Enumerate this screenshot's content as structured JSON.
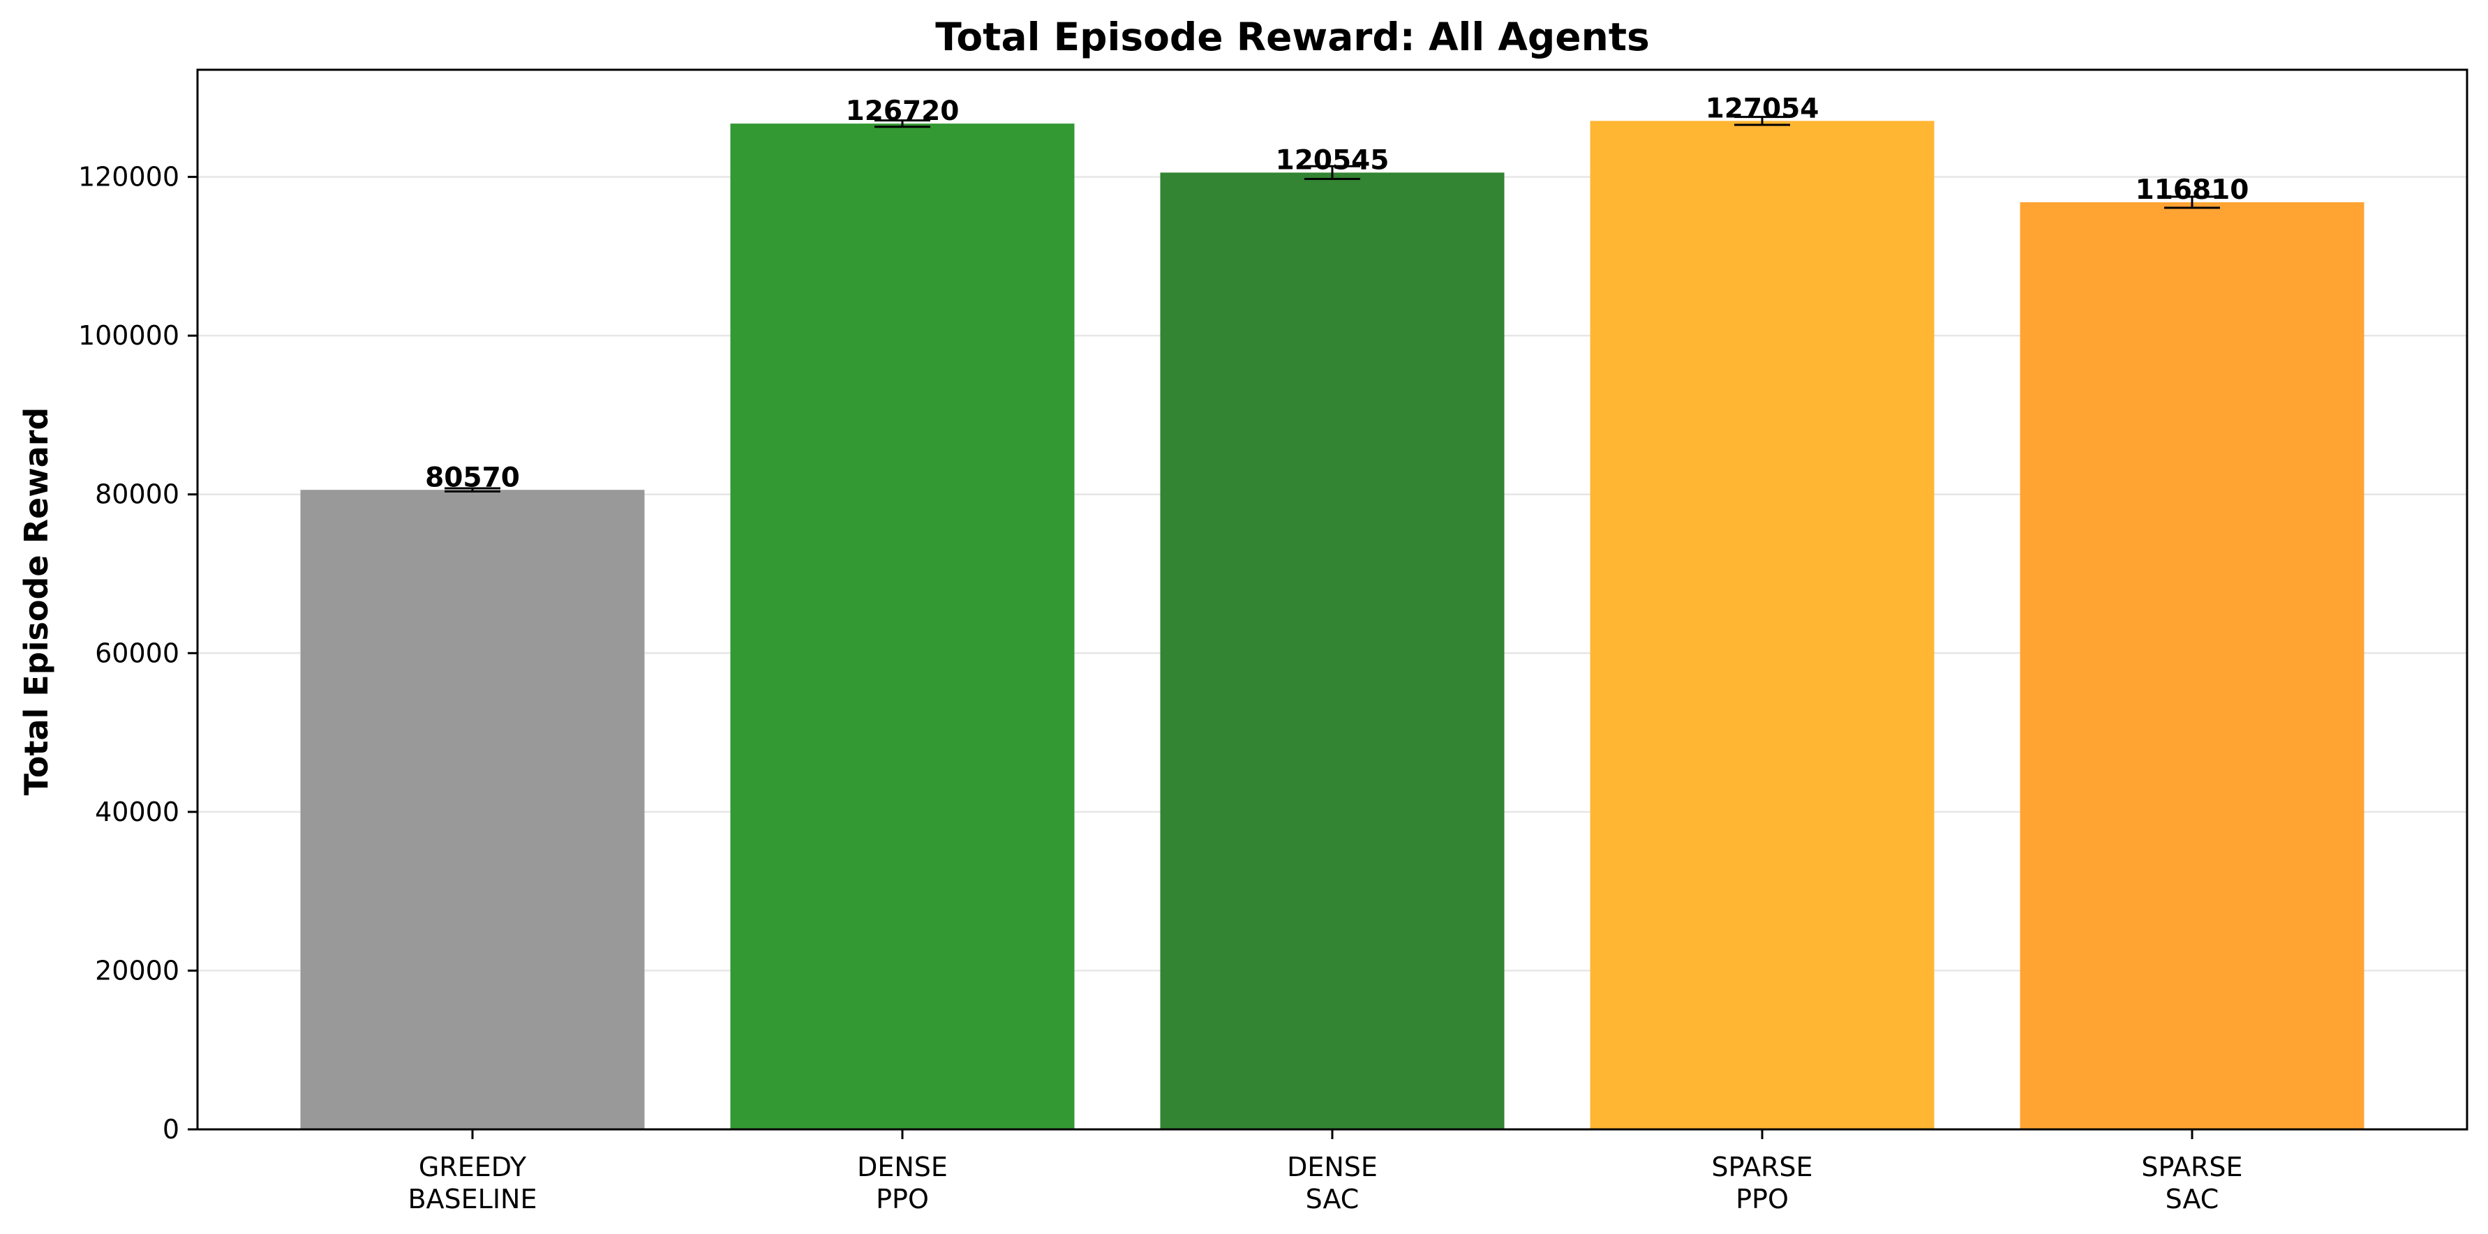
{
  "chart_data": {
    "type": "bar",
    "title": "Total Episode Reward: All Agents",
    "xlabel": "",
    "ylabel": "Total Episode Reward",
    "ylim": [
      0,
      133500
    ],
    "yticks": [
      0,
      20000,
      40000,
      60000,
      80000,
      100000,
      120000
    ],
    "grid": true,
    "categories": [
      [
        "GREEDY",
        "BASELINE"
      ],
      [
        "DENSE",
        "PPO"
      ],
      [
        "DENSE",
        "SAC"
      ],
      [
        "SPARSE",
        "PPO"
      ],
      [
        "SPARSE",
        "SAC"
      ]
    ],
    "values": [
      80570,
      126720,
      120545,
      127054,
      116810
    ],
    "errors": [
      200,
      400,
      800,
      500,
      700
    ],
    "value_labels": [
      "80570",
      "126720",
      "120545",
      "127054",
      "116810"
    ],
    "colors": [
      "#999999",
      "#339933",
      "#338433",
      "#ffb633",
      "#ffa333"
    ]
  }
}
